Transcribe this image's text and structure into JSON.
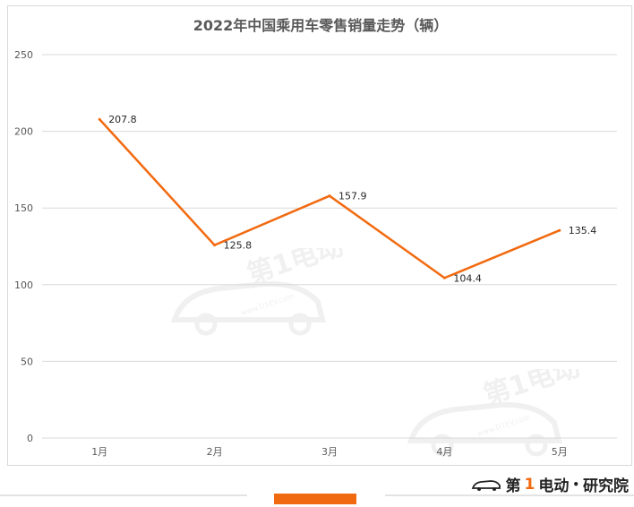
{
  "chart_data": {
    "type": "line",
    "title": "2022年中国乘用车零售销量走势（辆）",
    "categories": [
      "1月",
      "2月",
      "3月",
      "4月",
      "5月"
    ],
    "values": [
      207.8,
      125.8,
      157.9,
      104.4,
      135.4
    ],
    "data_labels": [
      "207.8",
      "125.8",
      "157.9",
      "104.4",
      "135.4"
    ],
    "ylim": [
      0,
      250
    ],
    "yticks": [
      "0",
      "50",
      "100",
      "150",
      "200",
      "250"
    ],
    "grid": "horizontal",
    "legend": "none",
    "line_color": "#f26a10"
  },
  "footer": {
    "logo_prefix": "第",
    "logo_one": "1",
    "logo_mid": "电动",
    "logo_dot": "•",
    "logo_suffix": "研究院"
  },
  "watermark": {
    "text": "第1电动",
    "url": "www.D1EV.com"
  }
}
